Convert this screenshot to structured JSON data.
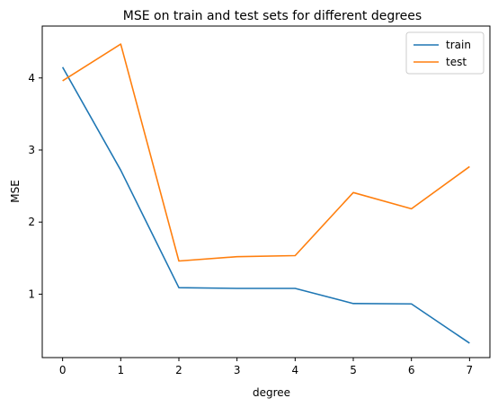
{
  "chart_data": {
    "type": "line",
    "title": "MSE on train and test sets for different degrees",
    "xlabel": "degree",
    "ylabel": "MSE",
    "x": [
      0,
      1,
      2,
      3,
      4,
      5,
      6,
      7
    ],
    "xticks": [
      "0",
      "1",
      "2",
      "3",
      "4",
      "5",
      "6",
      "7"
    ],
    "yticks": [
      1,
      2,
      3,
      4
    ],
    "yticklabels": [
      "1",
      "2",
      "3",
      "4"
    ],
    "xlim": [
      -0.35,
      7.35
    ],
    "ylim": [
      0.12,
      4.72
    ],
    "grid": false,
    "legend": "top-right",
    "series": [
      {
        "name": "train",
        "color": "#1f77b4",
        "values": [
          4.15,
          2.72,
          1.09,
          1.08,
          1.08,
          0.87,
          0.865,
          0.32
        ]
      },
      {
        "name": "test",
        "color": "#ff7f0e",
        "values": [
          3.96,
          4.47,
          1.46,
          1.52,
          1.535,
          2.41,
          2.185,
          2.77
        ]
      }
    ]
  }
}
